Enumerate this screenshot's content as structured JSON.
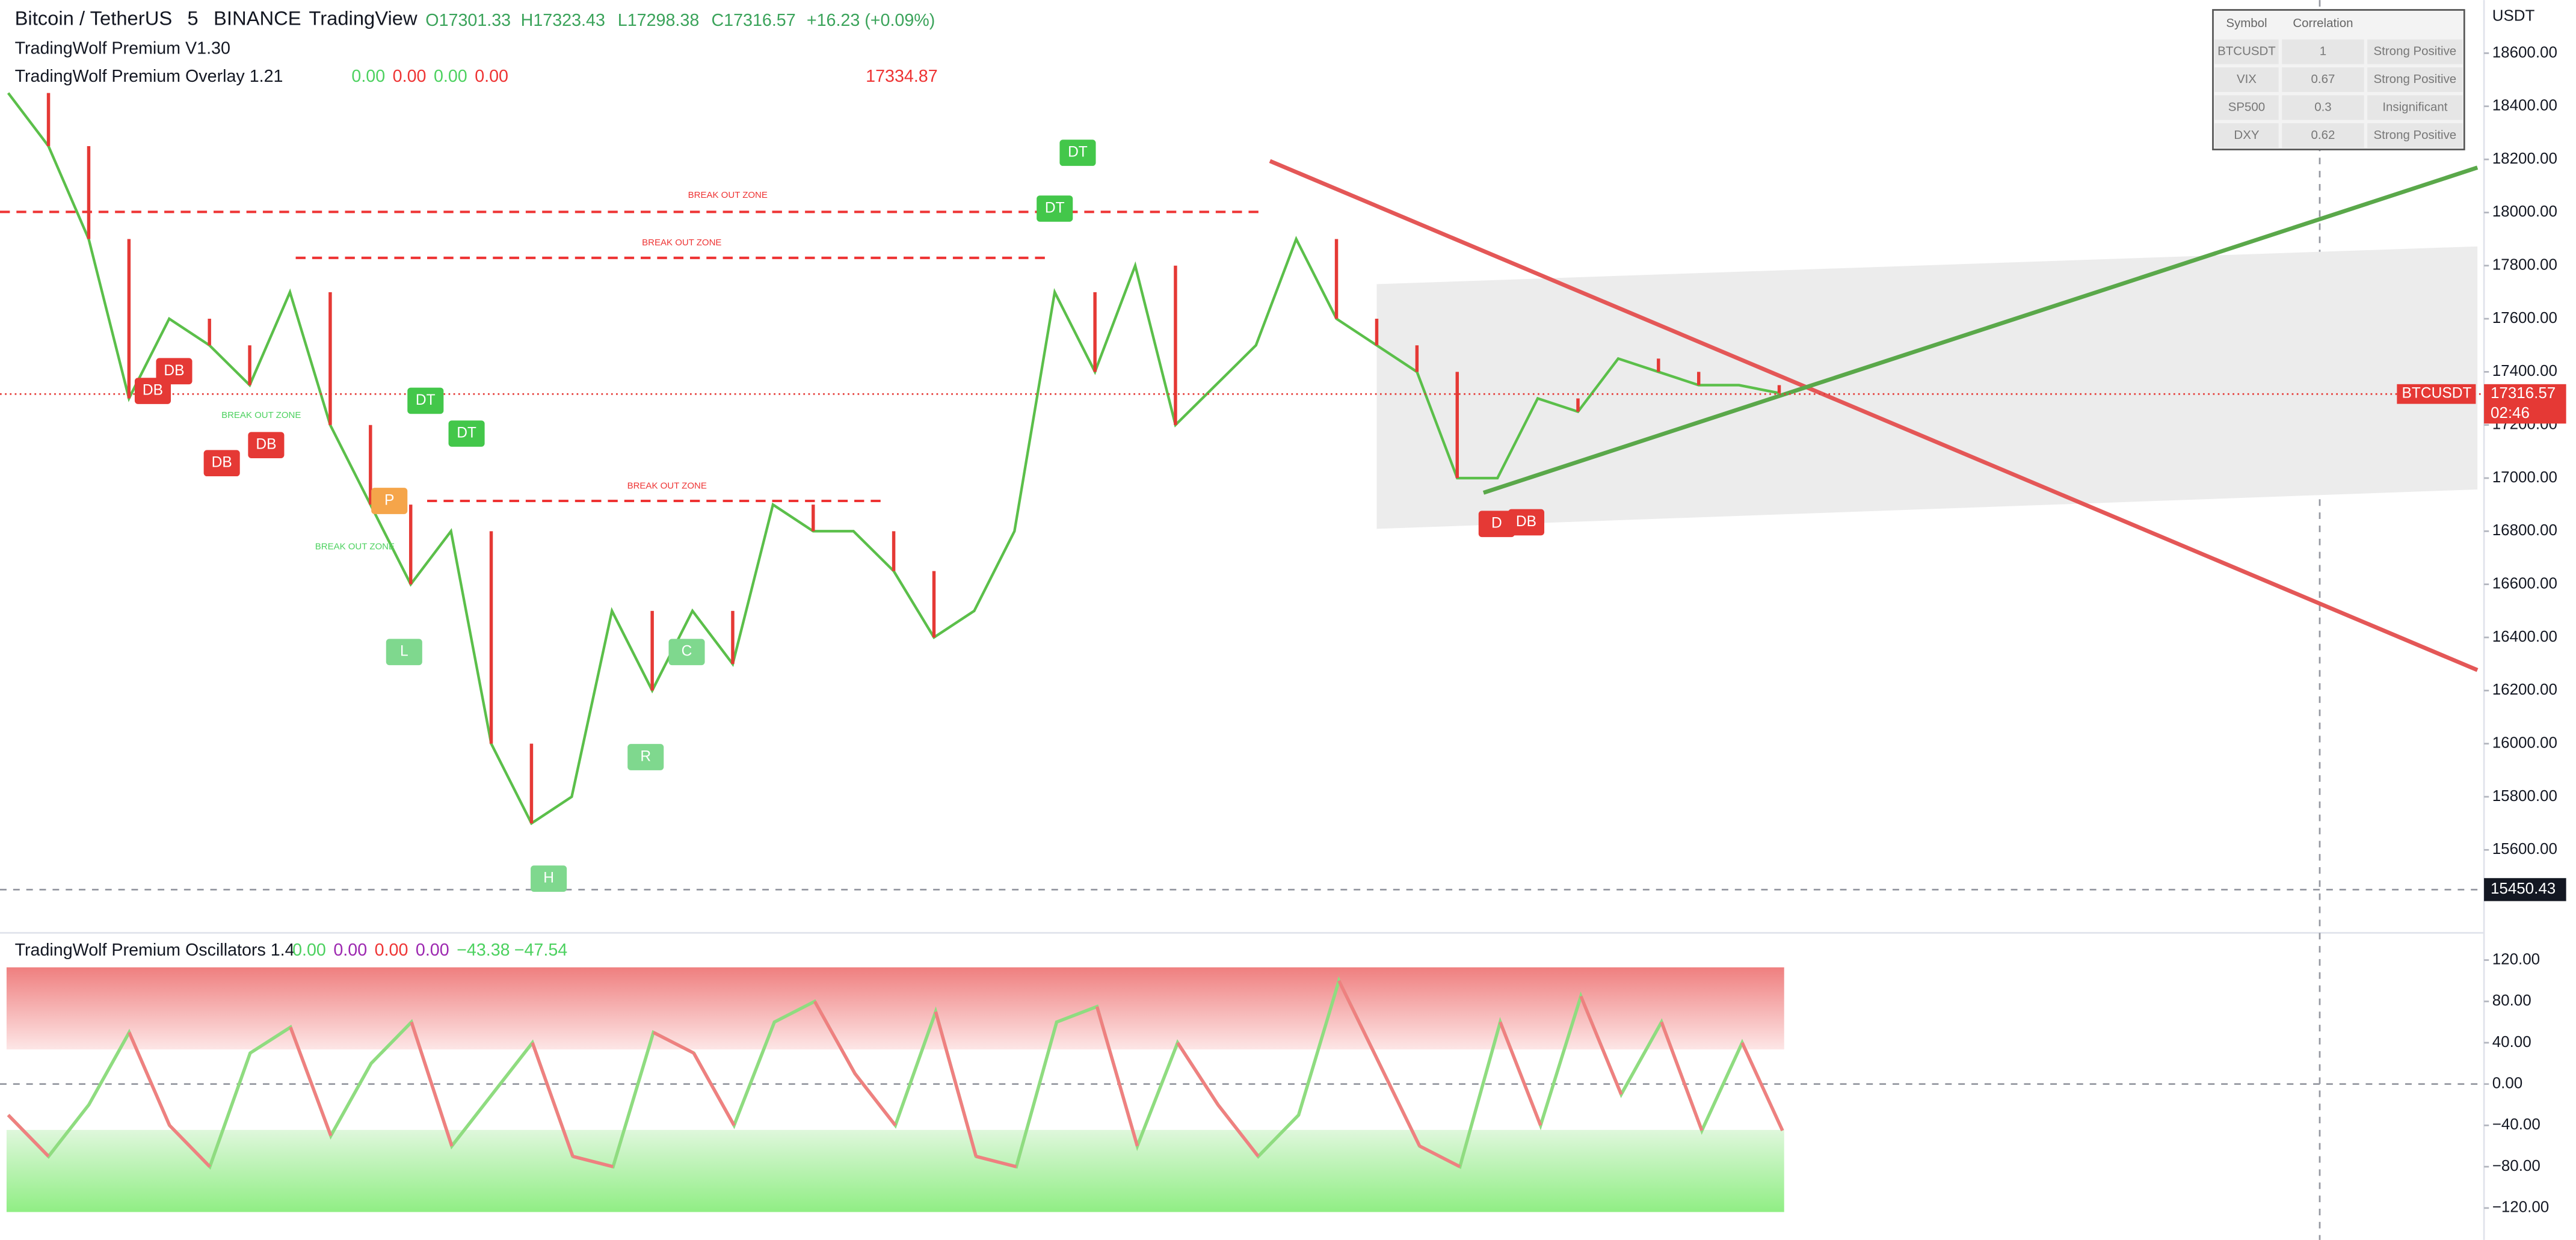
{
  "header": {
    "symbol": "Bitcoin / TetherUS",
    "interval": "5",
    "exchange": "BINANCE",
    "source": "TradingView",
    "open": "O17301.33",
    "high": "H17323.43",
    "low": "L17298.38",
    "close": "C17316.57",
    "change": "+16.23 (+0.09%)"
  },
  "indicators": {
    "premium": "TradingWolf Premium V1.30",
    "overlay": "TradingWolf Premium Overlay 1.21",
    "overlay_values": [
      "0.00",
      "0.00",
      "0.00",
      "0.00"
    ],
    "overlay_level": "17334.87"
  },
  "price_chart": {
    "unit": "USDT",
    "ylim": [
      15300,
      18800
    ],
    "yticks": [
      {
        "value": 15600,
        "label": "15600.00"
      },
      {
        "value": 15800,
        "label": "15800.00"
      },
      {
        "value": 16000,
        "label": "16000.00"
      },
      {
        "value": 16200,
        "label": "16200.00"
      },
      {
        "value": 16400,
        "label": "16400.00"
      },
      {
        "value": 16600,
        "label": "16600.00"
      },
      {
        "value": 16800,
        "label": "16800.00"
      },
      {
        "value": 17000,
        "label": "17000.00"
      },
      {
        "value": 17200,
        "label": "17200.00"
      },
      {
        "value": 17400,
        "label": "17400.00"
      },
      {
        "value": 17600,
        "label": "17600.00"
      },
      {
        "value": 17800,
        "label": "17800.00"
      },
      {
        "value": 18000,
        "label": "18000.00"
      },
      {
        "value": 18200,
        "label": "18200.00"
      },
      {
        "value": 18400,
        "label": "18400.00"
      },
      {
        "value": 18600,
        "label": "18600.00"
      }
    ],
    "closes": [
      18450,
      18250,
      17900,
      17300,
      17600,
      17500,
      17350,
      17700,
      17200,
      16900,
      16600,
      16800,
      16000,
      15700,
      15800,
      16500,
      16200,
      16500,
      16300,
      16900,
      16800,
      16800,
      16650,
      16400,
      16500,
      16800,
      17700,
      17400,
      17800,
      17200,
      17350,
      17500,
      17900,
      17600,
      17500,
      17400,
      17000,
      17000,
      17300,
      17250,
      17450,
      17400,
      17350,
      17350,
      17320
    ],
    "last_price": {
      "value": 17316.57,
      "label": "17316.57",
      "symbol": "BTCUSDT",
      "countdown": "02:46"
    },
    "crosshair": {
      "value": 15450.43,
      "label": "15450.43"
    },
    "annotations": [
      "DT",
      "DT",
      "DT",
      "DT",
      "DB",
      "DB",
      "DB",
      "DB",
      "D",
      "DB",
      "L",
      "R",
      "C",
      "H",
      "P"
    ],
    "zones": [
      "BREAK OUT ZONE",
      "BREAK OUT ZONE",
      "BREAK OUT ZONE",
      "BREAK OUT ZONE",
      "BREAK OUT ZONE"
    ]
  },
  "correlation_table": {
    "columns": [
      "Symbol",
      "Correlation"
    ],
    "rows": [
      [
        "BTCUSDT",
        "1",
        "Strong Positive"
      ],
      [
        "VIX",
        "0.67",
        "Strong Positive"
      ],
      [
        "SP500",
        "0.3",
        "Insignificant"
      ],
      [
        "DXY",
        "0.62",
        "Strong Positive"
      ]
    ]
  },
  "oscillator": {
    "title": "TradingWolf Premium Oscillators 1.4",
    "readouts": [
      "0.00",
      "0.00",
      "0.00",
      "0.00",
      "−43.38",
      "−47.54"
    ],
    "ylim": [
      -135,
      140
    ],
    "yticks": [
      {
        "value": 120,
        "label": "120.00"
      },
      {
        "value": 80,
        "label": "80.00"
      },
      {
        "value": 40,
        "label": "40.00"
      },
      {
        "value": 0,
        "label": "0.00"
      },
      {
        "value": -40,
        "label": "−40.00"
      },
      {
        "value": -80,
        "label": "−80.00"
      },
      {
        "value": -120,
        "label": "−120.00"
      }
    ],
    "values": [
      -30,
      -70,
      -20,
      50,
      -40,
      -80,
      30,
      55,
      -50,
      20,
      60,
      -60,
      -10,
      40,
      -70,
      -80,
      50,
      30,
      -40,
      60,
      80,
      10,
      -40,
      70,
      -70,
      -80,
      60,
      75,
      -60,
      40,
      -20,
      -70,
      -30,
      100,
      20,
      -60,
      -80,
      60,
      -40,
      85,
      -10,
      60,
      -45,
      40,
      -45
    ]
  }
}
